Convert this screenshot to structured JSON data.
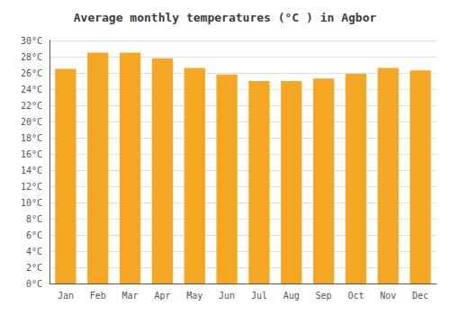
{
  "chart_data": {
    "type": "bar",
    "title": "Average monthly temperatures (°C ) in Agbor",
    "categories": [
      "Jan",
      "Feb",
      "Mar",
      "Apr",
      "May",
      "Jun",
      "Jul",
      "Aug",
      "Sep",
      "Oct",
      "Nov",
      "Dec"
    ],
    "values": [
      26.5,
      28.5,
      28.5,
      27.8,
      26.6,
      25.8,
      25.0,
      25.0,
      25.3,
      25.9,
      26.6,
      26.3
    ],
    "color": "#F5A623",
    "ylim": [
      0,
      30
    ],
    "yticks": [
      {
        "value": 0,
        "label": "0°C"
      },
      {
        "value": 2,
        "label": "2°C"
      },
      {
        "value": 4,
        "label": "4°C"
      },
      {
        "value": 6,
        "label": "6°C"
      },
      {
        "value": 8,
        "label": "8°C"
      },
      {
        "value": 10,
        "label": "10°C"
      },
      {
        "value": 12,
        "label": "12°C"
      },
      {
        "value": 14,
        "label": "14°C"
      },
      {
        "value": 16,
        "label": "16°C"
      },
      {
        "value": 18,
        "label": "18°C"
      },
      {
        "value": 20,
        "label": "20°C"
      },
      {
        "value": 22,
        "label": "22°C"
      },
      {
        "value": 24,
        "label": "24°C"
      },
      {
        "value": 26,
        "label": "26°C"
      },
      {
        "value": 28,
        "label": "28°C"
      },
      {
        "value": 30,
        "label": "30°C"
      }
    ],
    "grid": true
  }
}
